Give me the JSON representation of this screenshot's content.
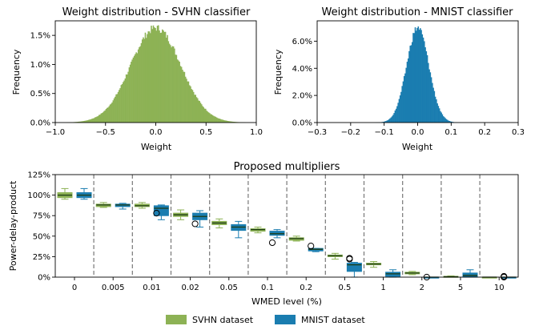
{
  "chart_data": [
    {
      "type": "histogram",
      "title": "Weight distribution - SVHN classifier",
      "xlabel": "Weight",
      "ylabel": "Frequency",
      "xlim": [
        -1.0,
        1.0
      ],
      "ylim": [
        0,
        1.75
      ],
      "x_ticks": [
        "−1.0",
        "−0.5",
        "0.0",
        "0.5",
        "1.0"
      ],
      "y_ticks": [
        "0.0%",
        "0.5%",
        "1.0%",
        "1.5%"
      ],
      "color": "#8db255",
      "distribution": {
        "mean": 0.0,
        "std": 0.25,
        "peak_percent": 1.63,
        "bins": 200
      }
    },
    {
      "type": "histogram",
      "title": "Weight distribution - MNIST classifier",
      "xlabel": "Weight",
      "ylabel": "Frequency",
      "xlim": [
        -0.3,
        0.3
      ],
      "ylim": [
        0,
        7.5
      ],
      "x_ticks": [
        "−0.3",
        "−0.2",
        "−0.1",
        "0.0",
        "0.1",
        "0.2",
        "0.3"
      ],
      "y_ticks": [
        "0.0%",
        "2.0%",
        "4.0%",
        "6.0%"
      ],
      "color": "#1a7db0",
      "distribution": {
        "mean": 0.0,
        "std": 0.033,
        "peak_percent": 7.0,
        "bins": 200
      }
    },
    {
      "type": "box",
      "title": "Proposed multipliers",
      "xlabel": "WMED level (%)",
      "ylabel": "Power-delay-product",
      "ylim": [
        0,
        125
      ],
      "y_ticks": [
        "0%",
        "25%",
        "50%",
        "75%",
        "100%",
        "125%"
      ],
      "categories": [
        "0",
        "0.005",
        "0.01",
        "0.02",
        "0.05",
        "0.1",
        "0.2",
        "0.5",
        "1",
        "2",
        "5",
        "10"
      ],
      "series": [
        {
          "name": "SVHN dataset",
          "color": "#8db255",
          "boxes": [
            {
              "min": 95,
              "q1": 97,
              "median": 100,
              "q3": 103,
              "max": 108
            },
            {
              "min": 85,
              "q1": 86,
              "median": 88,
              "q3": 89,
              "max": 91
            },
            {
              "min": 84,
              "q1": 86,
              "median": 87,
              "q3": 89,
              "max": 91
            },
            {
              "min": 70,
              "q1": 74,
              "median": 76,
              "q3": 78,
              "max": 82
            },
            {
              "min": 60,
              "q1": 64,
              "median": 66,
              "q3": 68,
              "max": 71
            },
            {
              "min": 54,
              "q1": 56,
              "median": 58,
              "q3": 59,
              "max": 61
            },
            {
              "min": 44,
              "q1": 45,
              "median": 47,
              "q3": 48,
              "max": 50
            },
            {
              "min": 22,
              "q1": 25,
              "median": 26,
              "q3": 27,
              "max": 29
            },
            {
              "min": 12,
              "q1": 15,
              "median": 16,
              "q3": 17,
              "max": 19
            },
            {
              "min": 3,
              "q1": 4,
              "median": 5,
              "q3": 6,
              "max": 7
            },
            {
              "min": 0,
              "q1": 0,
              "median": 0.5,
              "q3": 1,
              "max": 1.5
            },
            {
              "min": 0,
              "q1": 0,
              "median": 0,
              "q3": 0,
              "max": 0
            }
          ]
        },
        {
          "name": "MNIST dataset",
          "color": "#1a7db0",
          "boxes": [
            {
              "min": 95,
              "q1": 97,
              "median": 100,
              "q3": 103,
              "max": 108
            },
            {
              "min": 83,
              "q1": 86,
              "median": 88,
              "q3": 89,
              "max": 90
            },
            {
              "min": 70,
              "q1": 75,
              "median": 84,
              "q3": 87,
              "max": 88
            },
            {
              "min": 61,
              "q1": 70,
              "median": 74,
              "q3": 78,
              "max": 81
            },
            {
              "min": 48,
              "q1": 57,
              "median": 61,
              "q3": 64,
              "max": 68
            },
            {
              "min": 48,
              "q1": 51,
              "median": 53,
              "q3": 56,
              "max": 58
            },
            {
              "min": 31,
              "q1": 32,
              "median": 34,
              "q3": 35,
              "max": 35
            },
            {
              "min": 0,
              "q1": 7,
              "median": 15,
              "q3": 17,
              "max": 18
            },
            {
              "min": 0,
              "q1": 1,
              "median": 4,
              "q3": 6,
              "max": 9
            },
            {
              "min": 0,
              "q1": 0,
              "median": 0,
              "q3": 0,
              "max": 0
            },
            {
              "min": 0,
              "q1": 0,
              "median": 2,
              "q3": 5,
              "max": 9
            },
            {
              "min": 0,
              "q1": 0,
              "median": 0,
              "q3": 0,
              "max": 0
            }
          ]
        }
      ],
      "outliers": [
        {
          "category": "0.01",
          "value": 78
        },
        {
          "category": "0.02",
          "value": 65
        },
        {
          "category": "0.1",
          "value": 42
        },
        {
          "category": "0.2",
          "value": 38
        },
        {
          "category": "0.5",
          "value": 23
        },
        {
          "category": "0.5",
          "value": 22
        },
        {
          "category": "2",
          "value": 0
        },
        {
          "category": "10",
          "value": 0
        },
        {
          "category": "10",
          "value": 1
        }
      ],
      "legend": {
        "placement": "bottom-center",
        "entries": [
          "SVHN dataset",
          "MNIST dataset"
        ]
      }
    }
  ]
}
